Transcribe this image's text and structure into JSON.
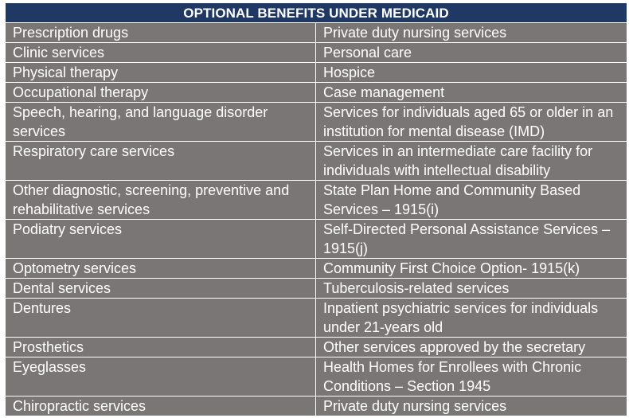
{
  "table": {
    "title": "OPTIONAL BENEFITS UNDER MEDICAID",
    "rows": [
      {
        "left": "Prescription drugs",
        "right": "Private duty nursing services"
      },
      {
        "left": "Clinic services",
        "right": "Personal care"
      },
      {
        "left": "Physical therapy",
        "right": "Hospice"
      },
      {
        "left": "Occupational therapy",
        "right": "Case management"
      },
      {
        "left": "Speech, hearing, and language disorder services",
        "right": "Services for individuals aged 65 or older in an institution for mental disease (IMD)"
      },
      {
        "left": "Respiratory care services",
        "right": "Services in an intermediate care facility for individuals with intellectual disability"
      },
      {
        "left": "Other diagnostic, screening, preventive and rehabilitative services",
        "right": "State Plan Home and Community Based Services – 1915(i)"
      },
      {
        "left": "Podiatry services",
        "right": "Self-Directed Personal Assistance Services – 1915(j)"
      },
      {
        "left": "Optometry services",
        "right": "Community First Choice Option- 1915(k)"
      },
      {
        "left": "Dental services",
        "right": "Tuberculosis-related services"
      },
      {
        "left": "Dentures",
        "right": "Inpatient psychiatric services for individuals under 21-years old"
      },
      {
        "left": "Prosthetics",
        "right": "Other services approved by the secretary"
      },
      {
        "left": "Eyeglasses",
        "right": "Health Homes for Enrollees with Chronic Conditions – Section 1945"
      },
      {
        "left": "Chiropractic services",
        "right": "Private duty nursing services"
      }
    ]
  }
}
